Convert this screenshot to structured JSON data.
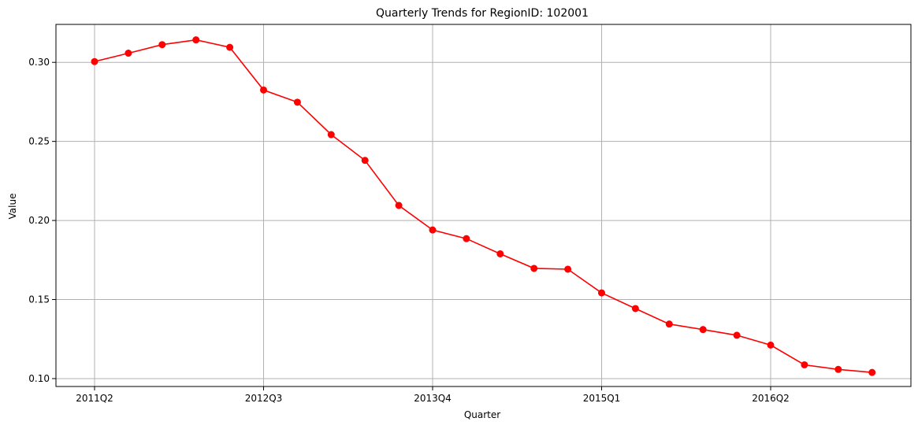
{
  "chart_data": {
    "type": "line",
    "title": "Quarterly Trends for RegionID: 102001",
    "xlabel": "Quarter",
    "ylabel": "Value",
    "x": [
      "2011Q2",
      "2011Q3",
      "2011Q4",
      "2012Q1",
      "2012Q2",
      "2012Q3",
      "2012Q4",
      "2013Q1",
      "2013Q2",
      "2013Q3",
      "2013Q4",
      "2014Q1",
      "2014Q2",
      "2014Q3",
      "2014Q4",
      "2015Q1",
      "2015Q2",
      "2015Q3",
      "2015Q4",
      "2016Q1",
      "2016Q2",
      "2016Q3",
      "2016Q4",
      "2017Q1"
    ],
    "x_tick_labels": [
      "2011Q2",
      "2012Q3",
      "2013Q4",
      "2015Q1",
      "2016Q2"
    ],
    "y_ticks": [
      0.1,
      0.15,
      0.2,
      0.25,
      0.3
    ],
    "y_tick_labels": [
      "0.10",
      "0.15",
      "0.20",
      "0.25",
      "0.30"
    ],
    "ylim": [
      0.095,
      0.324
    ],
    "grid": true,
    "series": [
      {
        "color": "#ff0000",
        "marker": "circle",
        "values": [
          0.3005,
          0.3058,
          0.3112,
          0.3142,
          0.3095,
          0.2825,
          0.2748,
          0.2543,
          0.238,
          0.2095,
          0.194,
          0.1885,
          0.1789,
          0.1697,
          0.1692,
          0.1542,
          0.1443,
          0.1345,
          0.131,
          0.1274,
          0.1212,
          0.1087,
          0.1058,
          0.1039
        ]
      }
    ]
  }
}
